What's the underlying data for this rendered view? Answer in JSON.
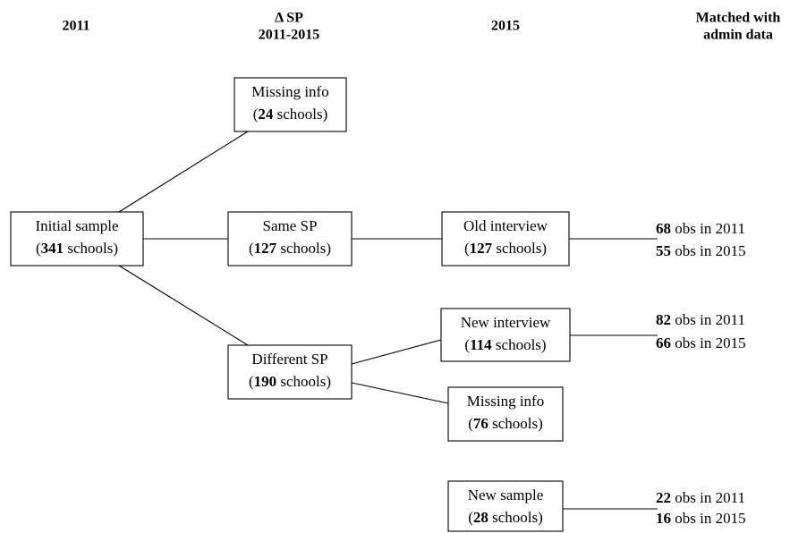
{
  "headers": [
    {
      "lines": [
        "2011"
      ]
    },
    {
      "lines": [
        "Δ SP",
        "2011-2015"
      ]
    },
    {
      "lines": [
        "2015"
      ]
    },
    {
      "lines": [
        "Matched with",
        "admin data"
      ]
    }
  ],
  "nodes": [
    {
      "line1": "Initial sample",
      "line2": [
        "(",
        341,
        " schools)"
      ]
    },
    {
      "line1": "Missing info",
      "line2": [
        "(",
        24,
        " schools)"
      ]
    },
    {
      "line1": "Same SP",
      "line2": [
        "(",
        127,
        " schools)"
      ]
    },
    {
      "line1": "Different SP",
      "line2": [
        "(",
        190,
        " schools)"
      ]
    },
    {
      "line1": "Old interview",
      "line2": [
        "(",
        127,
        " schools)"
      ]
    },
    {
      "line1": "New interview",
      "line2": [
        "(",
        114,
        " schools)"
      ]
    },
    {
      "line1": "Missing info",
      "line2": [
        "(",
        76,
        " schools)"
      ]
    },
    {
      "line1": "New sample",
      "line2": [
        "(",
        28,
        " schools)"
      ]
    }
  ],
  "matched": [
    [
      [
        68,
        " obs in 2011"
      ],
      [
        55,
        " obs in 2015"
      ]
    ],
    [
      [
        82,
        " obs in 2011"
      ],
      [
        66,
        " obs in 2015"
      ]
    ],
    [
      [
        22,
        " obs in 2011"
      ],
      [
        16,
        " obs in 2015"
      ]
    ]
  ]
}
